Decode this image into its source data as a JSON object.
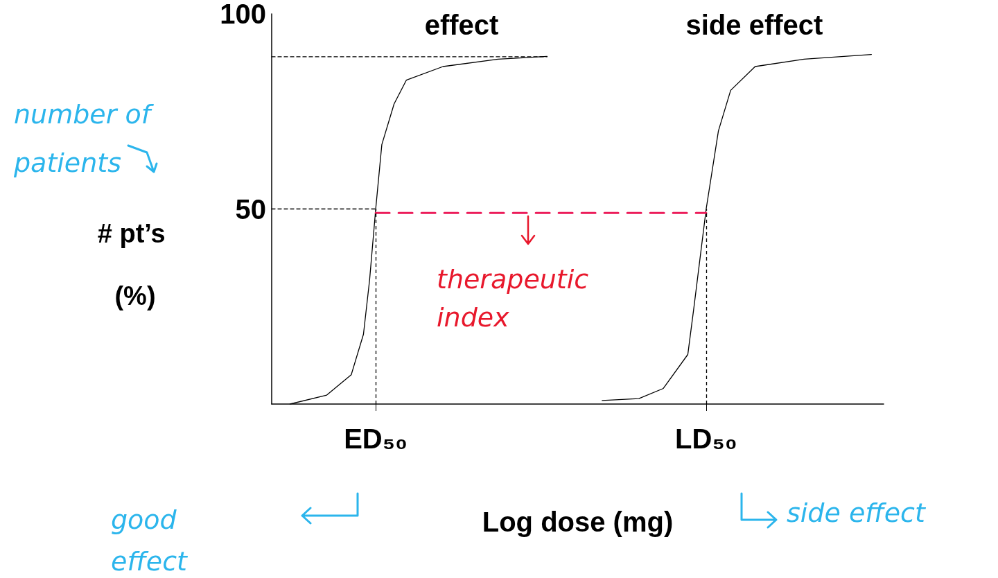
{
  "chart_data": {
    "type": "line",
    "xlabel": "Log dose (mg)",
    "ylabel": "# pt’s (%)",
    "categories": [
      null,
      null,
      null,
      null,
      null,
      null,
      null,
      null,
      null,
      null,
      null,
      null,
      null,
      null,
      null,
      null,
      null,
      "ED₅₀",
      null,
      null,
      null,
      null,
      null,
      null,
      null,
      null,
      null,
      null,
      null,
      null,
      null,
      null,
      null,
      null,
      null,
      null,
      null,
      null,
      null,
      null,
      null,
      null,
      null,
      null,
      null,
      null,
      null,
      null,
      null,
      null,
      null,
      null,
      null,
      null,
      null,
      null,
      null,
      null,
      null,
      null,
      null,
      null,
      null,
      null,
      null,
      null,
      null,
      null,
      null,
      null,
      null,
      "LD₅₀",
      null,
      null,
      null,
      null,
      null,
      null,
      null,
      null,
      null,
      null,
      null,
      null,
      null,
      null,
      null,
      null,
      null,
      null,
      null,
      null,
      null,
      null,
      null,
      null,
      null,
      null,
      null,
      null,
      null
    ],
    "ylim": [
      0,
      100
    ],
    "yticks": [
      50,
      100
    ],
    "grid": false,
    "legend": false,
    "marker": "none",
    "series": [
      {
        "name": "effect",
        "color": "#000000",
        "line_style": "solid",
        "values": [
          null,
          null,
          null,
          0,
          null,
          null,
          null,
          null,
          null,
          2.3,
          null,
          null,
          null,
          7.5,
          null,
          17.9,
          31.8,
          50,
          66.5,
          null,
          76.9,
          null,
          83,
          null,
          null,
          null,
          null,
          null,
          86.5,
          null,
          null,
          null,
          null,
          null,
          null,
          null,
          null,
          88.4,
          null,
          null,
          null,
          null,
          null,
          null,
          null,
          89.1,
          null,
          null,
          null,
          null,
          null,
          null,
          null,
          null,
          null,
          null,
          null,
          null,
          null,
          null,
          null,
          null,
          null,
          null,
          null,
          null,
          null,
          null,
          null,
          null,
          null,
          null,
          null,
          null,
          null,
          null,
          null,
          null,
          null,
          null,
          null,
          null,
          null,
          null,
          null,
          null,
          null,
          null,
          null,
          null,
          null,
          null,
          null,
          null,
          null,
          null,
          null,
          null,
          null,
          null,
          null
        ]
      },
      {
        "name": "side effect",
        "color": "#000000",
        "line_style": "solid",
        "values": [
          null,
          null,
          null,
          null,
          null,
          null,
          null,
          null,
          null,
          null,
          null,
          null,
          null,
          null,
          null,
          null,
          null,
          null,
          null,
          null,
          null,
          null,
          null,
          null,
          null,
          null,
          null,
          null,
          null,
          null,
          null,
          null,
          null,
          null,
          null,
          null,
          null,
          null,
          null,
          null,
          null,
          null,
          null,
          null,
          null,
          null,
          null,
          null,
          null,
          null,
          null,
          null,
          null,
          null,
          0.9,
          null,
          null,
          null,
          null,
          null,
          1.4,
          null,
          null,
          null,
          4,
          null,
          null,
          null,
          12.7,
          24.8,
          null,
          50,
          null,
          70,
          null,
          80.4,
          null,
          null,
          null,
          86.5,
          null,
          null,
          null,
          null,
          null,
          null,
          null,
          88.4,
          null,
          null,
          null,
          null,
          null,
          null,
          null,
          null,
          null,
          null,
          89.6,
          null,
          null
        ]
      },
      {
        "color": "#000000",
        "line_style": "dashed",
        "values": [
          89,
          null,
          null,
          null,
          null,
          null,
          null,
          null,
          null,
          null,
          null,
          null,
          null,
          null,
          null,
          null,
          null,
          null,
          null,
          null,
          null,
          null,
          null,
          null,
          null,
          null,
          null,
          null,
          null,
          null,
          null,
          null,
          null,
          null,
          null,
          null,
          null,
          null,
          null,
          null,
          null,
          null,
          null,
          null,
          null,
          89,
          null,
          null,
          null,
          null,
          null,
          null,
          null,
          null,
          null,
          null,
          null,
          null,
          null,
          null,
          null,
          null,
          null,
          null,
          null,
          null,
          null,
          null,
          null,
          null,
          null,
          null,
          null,
          null,
          null,
          null,
          null,
          null,
          null,
          null,
          null,
          null,
          null,
          null,
          null,
          null,
          null,
          null,
          null,
          null,
          null,
          null,
          null,
          null,
          null,
          null,
          null,
          null,
          null,
          null,
          null
        ]
      },
      {
        "color": "#000000",
        "line_style": "dashed",
        "values": [
          50,
          null,
          null,
          null,
          null,
          null,
          null,
          null,
          null,
          null,
          null,
          null,
          null,
          null,
          null,
          null,
          null,
          50,
          null,
          null,
          null,
          null,
          null,
          null,
          null,
          null,
          null,
          null,
          null,
          null,
          null,
          null,
          null,
          null,
          null,
          null,
          null,
          null,
          null,
          null,
          null,
          null,
          null,
          null,
          null,
          null,
          null,
          null,
          null,
          null,
          null,
          null,
          null,
          null,
          null,
          null,
          null,
          null,
          null,
          null,
          null,
          null,
          null,
          null,
          null,
          null,
          null,
          null,
          null,
          null,
          null,
          null,
          null,
          null,
          null,
          null,
          null,
          null,
          null,
          null,
          null,
          null,
          null,
          null,
          null,
          null,
          null,
          null,
          null,
          null,
          null,
          null,
          null,
          null,
          null,
          null,
          null,
          null,
          null,
          null,
          null
        ]
      },
      {
        "color": "#ec1c5a",
        "line_style": "dashed",
        "values": [
          null,
          null,
          null,
          null,
          null,
          null,
          null,
          null,
          null,
          null,
          null,
          null,
          null,
          null,
          null,
          null,
          null,
          49,
          null,
          null,
          null,
          null,
          null,
          null,
          null,
          null,
          null,
          null,
          null,
          null,
          null,
          null,
          null,
          null,
          null,
          null,
          null,
          null,
          null,
          null,
          null,
          null,
          null,
          null,
          null,
          null,
          null,
          null,
          null,
          null,
          null,
          null,
          null,
          null,
          null,
          null,
          null,
          null,
          null,
          null,
          null,
          null,
          null,
          null,
          null,
          null,
          null,
          null,
          null,
          null,
          null,
          49,
          null,
          null,
          null,
          null,
          null,
          null,
          null,
          null,
          null,
          null,
          null,
          null,
          null,
          null,
          null,
          null,
          null,
          null,
          null,
          null,
          null,
          null,
          null,
          null,
          null,
          null,
          null,
          null,
          null
        ]
      }
    ],
    "ref_lines": [
      {
        "axis": "x",
        "value": "ED₅₀",
        "color": "#000000",
        "line_style": "dashed"
      },
      {
        "axis": "x",
        "value": "LD₅₀",
        "color": "#000000",
        "line_style": "dashed"
      }
    ],
    "annotations": [
      "number of patients",
      "therapeutic index",
      "good effect",
      "side effect"
    ]
  }
}
